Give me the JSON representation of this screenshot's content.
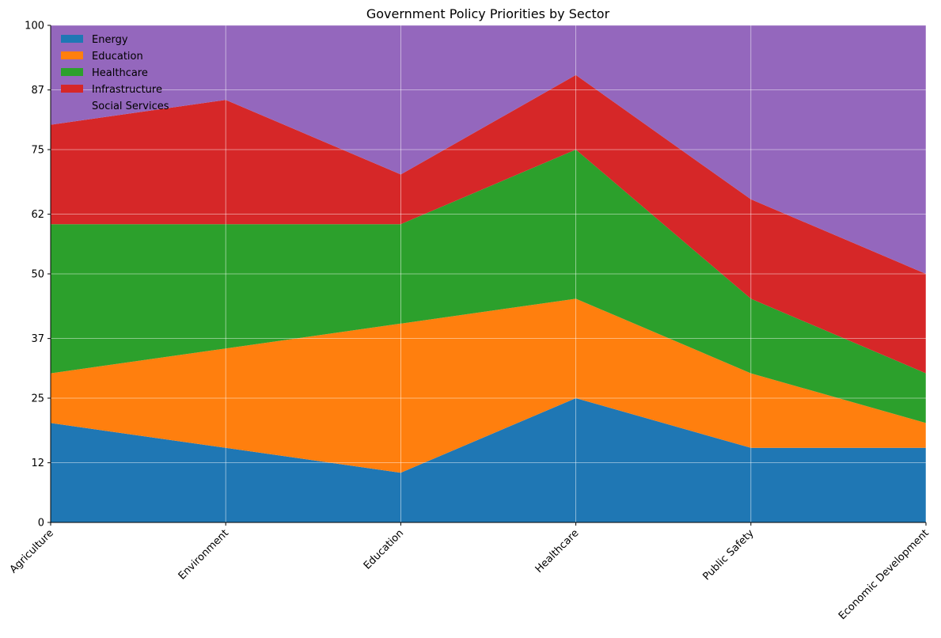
{
  "chart_data": {
    "type": "area",
    "stacked": true,
    "title": "Government Policy Priorities by Sector",
    "xlabel": "",
    "ylabel": "",
    "categories": [
      "Agriculture",
      "Environment",
      "Education",
      "Healthcare",
      "Public Safety",
      "Economic Development"
    ],
    "ylim": [
      0,
      100
    ],
    "yticks": [
      0,
      12,
      25,
      37,
      50,
      62,
      75,
      87,
      100
    ],
    "grid": true,
    "legend_position": "top-left",
    "series": [
      {
        "name": "Energy",
        "color": "#1f77b4",
        "values": [
          20,
          15,
          10,
          25,
          15,
          15
        ]
      },
      {
        "name": "Education",
        "color": "#ff7f0e",
        "values": [
          10,
          20,
          30,
          20,
          15,
          5
        ]
      },
      {
        "name": "Healthcare",
        "color": "#2ca02c",
        "values": [
          30,
          25,
          20,
          30,
          15,
          10
        ]
      },
      {
        "name": "Infrastructure",
        "color": "#d62728",
        "values": [
          20,
          25,
          10,
          15,
          20,
          20
        ]
      },
      {
        "name": "Social Services",
        "color": "#9467bd",
        "values": [
          20,
          15,
          30,
          10,
          35,
          50
        ]
      }
    ]
  }
}
